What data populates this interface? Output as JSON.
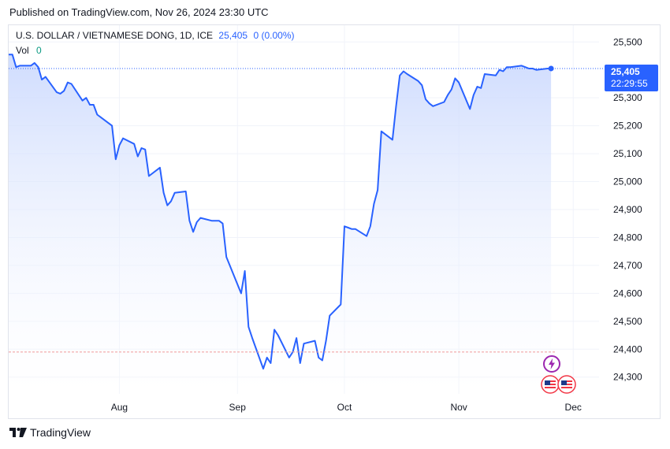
{
  "header": {
    "published": "Published on TradingView.com, Nov 26, 2024 23:30 UTC"
  },
  "legend": {
    "symbol": "U.S. DOLLAR / VIETNAMESE DONG, 1D, ICE",
    "last": "25,405",
    "change": "0 (0.00%)",
    "vol_label": "Vol",
    "vol_value": "0"
  },
  "price_label": {
    "price": "25,405",
    "countdown": "22:29:55"
  },
  "brand": {
    "name": "TradingView"
  },
  "colors": {
    "line": "#2962ff",
    "area_top": "#c7d6fd",
    "area_bottom": "#ffffff",
    "grid": "#f0f3fa",
    "last_line": "#2962ff",
    "low_line": "#ef9a9a",
    "event_purple": "#9c27b0",
    "event_flag": "#f23645"
  },
  "icons": [
    "lightning-event-icon",
    "us-flag-event-icon"
  ],
  "chart_data": {
    "type": "area",
    "y_ticks": [
      "24,300",
      "24,400",
      "24,500",
      "24,600",
      "24,700",
      "24,800",
      "24,900",
      "25,000",
      "25,100",
      "25,200",
      "25,300",
      "25,500"
    ],
    "y_tick_values": [
      24300,
      24400,
      24500,
      24600,
      24700,
      24800,
      24900,
      25000,
      25100,
      25200,
      25300,
      25500
    ],
    "x_ticks": [
      {
        "label": "Aug",
        "date": "2024-08-01"
      },
      {
        "label": "Sep",
        "date": "2024-09-02"
      },
      {
        "label": "Oct",
        "date": "2024-10-01"
      },
      {
        "label": "Nov",
        "date": "2024-11-01"
      },
      {
        "label": "Dec",
        "date": "2024-12-02"
      }
    ],
    "ylim": [
      24240,
      25560
    ],
    "xlim": [
      "2024-07-02",
      "2024-12-09"
    ],
    "grid": true,
    "last_value": 25405,
    "reference_low": 24390,
    "series": [
      {
        "values": [
          [
            "2024-07-02",
            25455
          ],
          [
            "2024-07-03",
            25455
          ],
          [
            "2024-07-04",
            25410
          ],
          [
            "2024-07-05",
            25415
          ],
          [
            "2024-07-08",
            25415
          ],
          [
            "2024-07-09",
            25425
          ],
          [
            "2024-07-10",
            25410
          ],
          [
            "2024-07-11",
            25365
          ],
          [
            "2024-07-12",
            25375
          ],
          [
            "2024-07-15",
            25320
          ],
          [
            "2024-07-16",
            25315
          ],
          [
            "2024-07-17",
            25325
          ],
          [
            "2024-07-18",
            25355
          ],
          [
            "2024-07-19",
            25350
          ],
          [
            "2024-07-22",
            25290
          ],
          [
            "2024-07-23",
            25300
          ],
          [
            "2024-07-24",
            25275
          ],
          [
            "2024-07-25",
            25275
          ],
          [
            "2024-07-26",
            25240
          ],
          [
            "2024-07-29",
            25210
          ],
          [
            "2024-07-30",
            25200
          ],
          [
            "2024-07-31",
            25080
          ],
          [
            "2024-08-01",
            25130
          ],
          [
            "2024-08-02",
            25155
          ],
          [
            "2024-08-05",
            25135
          ],
          [
            "2024-08-06",
            25090
          ],
          [
            "2024-08-07",
            25120
          ],
          [
            "2024-08-08",
            25115
          ],
          [
            "2024-08-09",
            25020
          ],
          [
            "2024-08-12",
            25050
          ],
          [
            "2024-08-13",
            24960
          ],
          [
            "2024-08-14",
            24915
          ],
          [
            "2024-08-15",
            24930
          ],
          [
            "2024-08-16",
            24960
          ],
          [
            "2024-08-19",
            24965
          ],
          [
            "2024-08-20",
            24860
          ],
          [
            "2024-08-21",
            24820
          ],
          [
            "2024-08-22",
            24855
          ],
          [
            "2024-08-23",
            24870
          ],
          [
            "2024-08-26",
            24860
          ],
          [
            "2024-08-27",
            24860
          ],
          [
            "2024-08-28",
            24860
          ],
          [
            "2024-08-29",
            24850
          ],
          [
            "2024-08-30",
            24730
          ],
          [
            "2024-09-03",
            24600
          ],
          [
            "2024-09-04",
            24680
          ],
          [
            "2024-09-05",
            24480
          ],
          [
            "2024-09-06",
            24440
          ],
          [
            "2024-09-09",
            24330
          ],
          [
            "2024-09-10",
            24370
          ],
          [
            "2024-09-11",
            24350
          ],
          [
            "2024-09-12",
            24470
          ],
          [
            "2024-09-13",
            24450
          ],
          [
            "2024-09-16",
            24370
          ],
          [
            "2024-09-17",
            24390
          ],
          [
            "2024-09-18",
            24440
          ],
          [
            "2024-09-19",
            24350
          ],
          [
            "2024-09-20",
            24420
          ],
          [
            "2024-09-23",
            24430
          ],
          [
            "2024-09-24",
            24370
          ],
          [
            "2024-09-25",
            24360
          ],
          [
            "2024-09-26",
            24430
          ],
          [
            "2024-09-27",
            24520
          ],
          [
            "2024-09-30",
            24560
          ],
          [
            "2024-10-01",
            24840
          ],
          [
            "2024-10-02",
            24835
          ],
          [
            "2024-10-03",
            24830
          ],
          [
            "2024-10-04",
            24830
          ],
          [
            "2024-10-07",
            24805
          ],
          [
            "2024-10-08",
            24840
          ],
          [
            "2024-10-09",
            24920
          ],
          [
            "2024-10-10",
            24970
          ],
          [
            "2024-10-11",
            25180
          ],
          [
            "2024-10-14",
            25150
          ],
          [
            "2024-10-15",
            25270
          ],
          [
            "2024-10-16",
            25380
          ],
          [
            "2024-10-17",
            25395
          ],
          [
            "2024-10-18",
            25385
          ],
          [
            "2024-10-21",
            25360
          ],
          [
            "2024-10-22",
            25345
          ],
          [
            "2024-10-23",
            25295
          ],
          [
            "2024-10-24",
            25280
          ],
          [
            "2024-10-25",
            25270
          ],
          [
            "2024-10-28",
            25285
          ],
          [
            "2024-10-29",
            25310
          ],
          [
            "2024-10-30",
            25330
          ],
          [
            "2024-10-31",
            25370
          ],
          [
            "2024-11-01",
            25355
          ],
          [
            "2024-11-04",
            25260
          ],
          [
            "2024-11-05",
            25310
          ],
          [
            "2024-11-06",
            25340
          ],
          [
            "2024-11-07",
            25335
          ],
          [
            "2024-11-08",
            25385
          ],
          [
            "2024-11-11",
            25380
          ],
          [
            "2024-11-12",
            25400
          ],
          [
            "2024-11-13",
            25395
          ],
          [
            "2024-11-14",
            25410
          ],
          [
            "2024-11-15",
            25410
          ],
          [
            "2024-11-18",
            25415
          ],
          [
            "2024-11-19",
            25410
          ],
          [
            "2024-11-20",
            25405
          ],
          [
            "2024-11-21",
            25405
          ],
          [
            "2024-11-22",
            25400
          ],
          [
            "2024-11-25",
            25405
          ],
          [
            "2024-11-26",
            25405
          ]
        ]
      }
    ]
  }
}
